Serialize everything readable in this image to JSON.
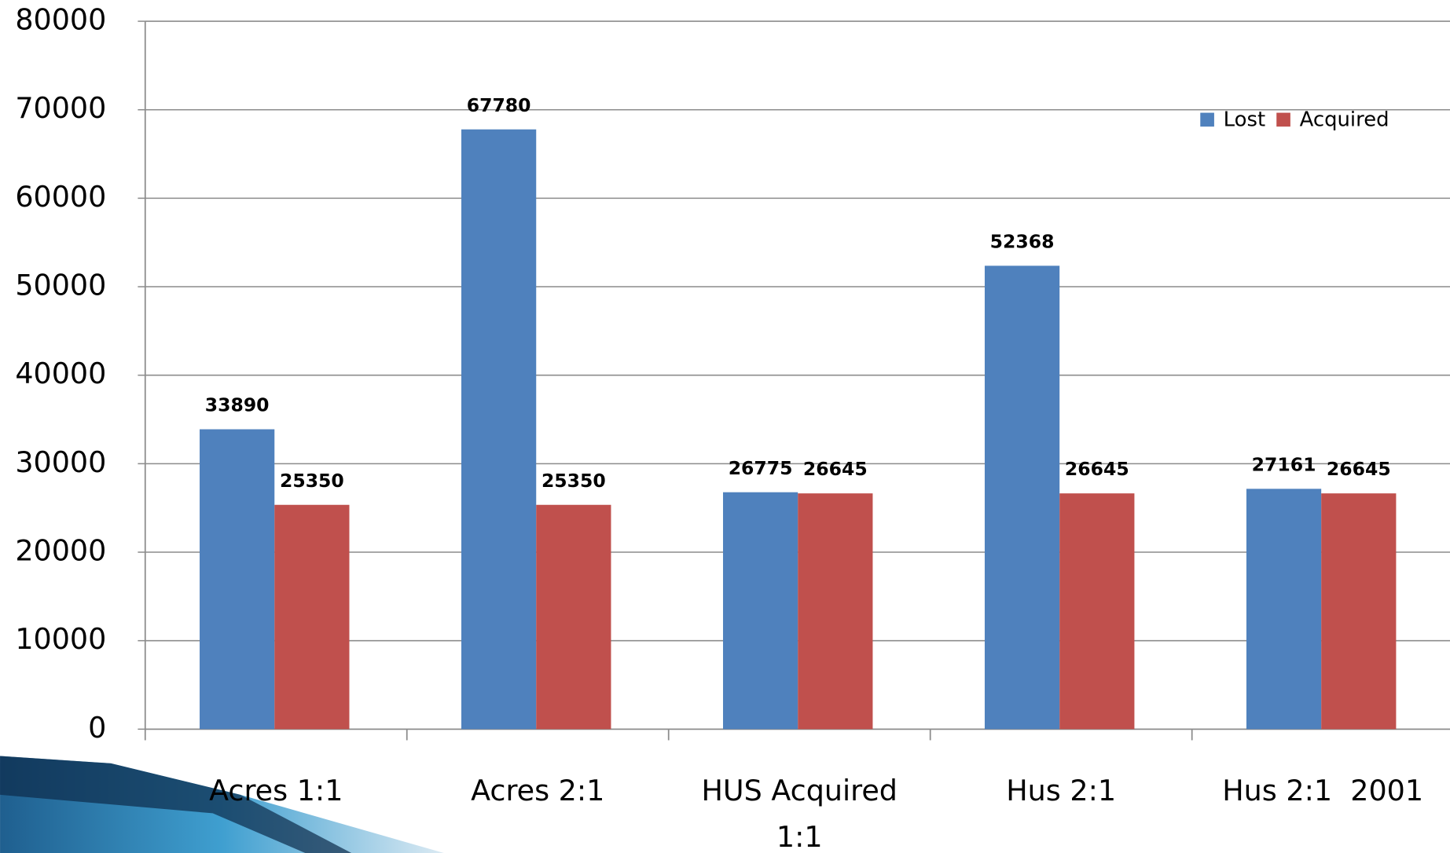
{
  "chart_data": {
    "type": "bar",
    "categories": [
      "Acres 1:1",
      "Acres 2:1",
      "HUS Acquired 1:1",
      "Hus 2:1",
      "Hus 2:1  2001"
    ],
    "series": [
      {
        "name": "Lost",
        "color": "#4f81bd",
        "values": [
          33890,
          67780,
          26775,
          52368,
          27161
        ]
      },
      {
        "name": "Acquired",
        "color": "#c0504d",
        "values": [
          25350,
          25350,
          26645,
          26645,
          26645
        ]
      }
    ],
    "ylim": [
      0,
      80000
    ],
    "yticks": [
      0,
      10000,
      20000,
      30000,
      40000,
      50000,
      60000,
      70000,
      80000
    ],
    "grid": true,
    "legend": "top-right"
  }
}
